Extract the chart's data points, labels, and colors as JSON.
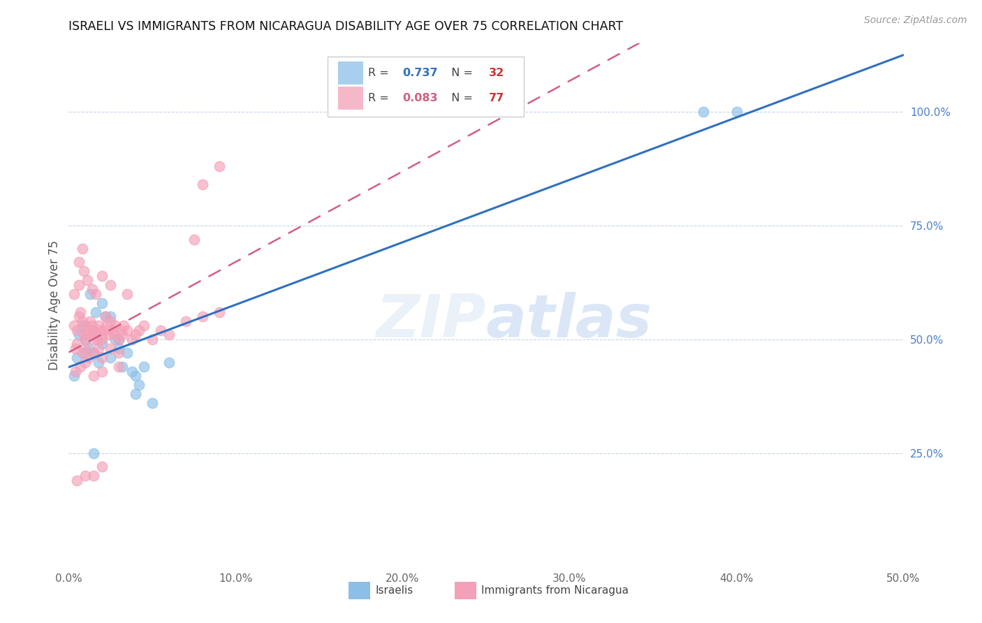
{
  "title": "ISRAELI VS IMMIGRANTS FROM NICARAGUA DISABILITY AGE OVER 75 CORRELATION CHART",
  "source": "Source: ZipAtlas.com",
  "ylabel": "Disability Age Over 75",
  "x_tick_vals": [
    0,
    10,
    20,
    30,
    40,
    50
  ],
  "y_tick_vals_right": [
    25,
    50,
    75,
    100
  ],
  "xlim": [
    0,
    50
  ],
  "ylim": [
    0,
    115
  ],
  "watermark": "ZIPatlas",
  "israeli_color": "#8bbfe8",
  "nicaragua_color": "#f4a0b8",
  "line_israeli_color": "#3070c0",
  "line_nicaragua_color": "#d06080",
  "background_color": "#ffffff",
  "grid_color": "#c8d4e8",
  "title_color": "#111111",
  "axis_label_color": "#555555",
  "right_tick_color": "#4a7fcc",
  "R_israeli": 0.737,
  "N_israeli": 32,
  "R_nicaragua": 0.083,
  "N_nicaragua": 77,
  "israeli_x": [
    0.5,
    1.0,
    1.2,
    1.5,
    1.5,
    1.8,
    2.0,
    2.2,
    2.5,
    2.8,
    3.0,
    3.2,
    3.5,
    3.8,
    4.0,
    4.2,
    4.5,
    0.3,
    0.6,
    0.8,
    1.0,
    1.3,
    1.6,
    2.0,
    2.5,
    3.0,
    4.0,
    5.0,
    6.0,
    38.0,
    40.0,
    1.5
  ],
  "israeli_y": [
    46,
    50,
    48,
    47,
    52,
    45,
    49,
    55,
    46,
    50,
    48,
    44,
    47,
    43,
    42,
    40,
    44,
    42,
    51,
    53,
    47,
    60,
    56,
    58,
    55,
    50,
    38,
    36,
    45,
    100,
    100,
    25
  ],
  "nicaragua_x": [
    0.3,
    0.5,
    0.6,
    0.7,
    0.8,
    0.9,
    1.0,
    1.0,
    1.1,
    1.2,
    1.3,
    1.4,
    1.5,
    1.5,
    1.6,
    1.7,
    1.8,
    1.9,
    2.0,
    2.0,
    2.1,
    2.2,
    2.3,
    2.4,
    2.5,
    2.6,
    2.7,
    2.8,
    3.0,
    3.1,
    3.2,
    3.3,
    3.5,
    3.8,
    4.0,
    4.2,
    4.5,
    5.0,
    5.5,
    6.0,
    0.4,
    0.5,
    0.8,
    1.0,
    1.2,
    1.5,
    1.8,
    2.0,
    2.5,
    3.0,
    0.3,
    0.6,
    0.9,
    1.1,
    1.4,
    1.6,
    2.0,
    2.5,
    3.5,
    7.0,
    8.0,
    9.0,
    0.4,
    0.7,
    1.0,
    1.5,
    2.0,
    3.0,
    0.5,
    1.0,
    1.5,
    2.0,
    8.0,
    9.0,
    0.6,
    0.8,
    7.5
  ],
  "nicaragua_y": [
    53,
    52,
    55,
    56,
    54,
    51,
    50,
    53,
    52,
    51,
    54,
    53,
    52,
    50,
    51,
    50,
    53,
    52,
    51,
    50,
    52,
    55,
    53,
    51,
    54,
    52,
    51,
    53,
    50,
    52,
    51,
    53,
    52,
    50,
    51,
    52,
    53,
    50,
    52,
    51,
    48,
    49,
    47,
    48,
    46,
    47,
    48,
    46,
    48,
    47,
    60,
    62,
    65,
    63,
    61,
    60,
    64,
    62,
    60,
    54,
    55,
    56,
    43,
    44,
    45,
    42,
    43,
    44,
    19,
    20,
    20,
    22,
    84,
    88,
    67,
    70,
    72
  ]
}
